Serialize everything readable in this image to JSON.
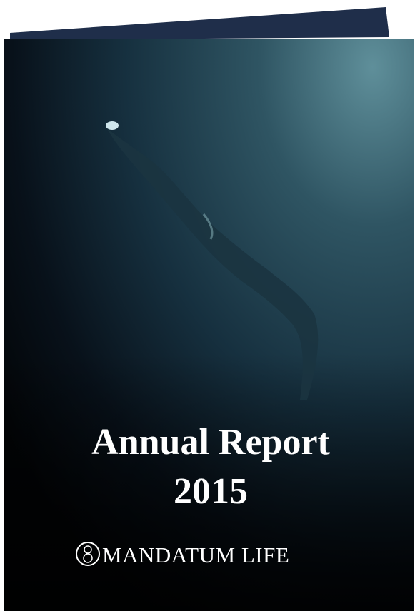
{
  "cover": {
    "title_lines": [
      "Annual Report",
      "2015"
    ],
    "brand": "MANDATUM LIFE"
  }
}
